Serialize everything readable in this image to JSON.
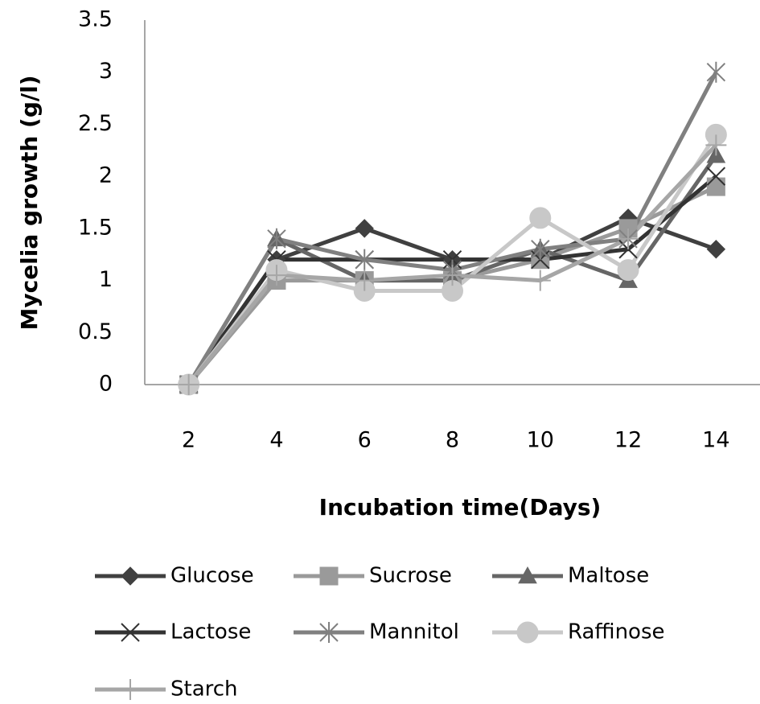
{
  "chart_data": {
    "type": "line",
    "x_label": "Incubation time(Days)",
    "y_label": "Mycelia growth (g/l)",
    "categories": [
      "2",
      "4",
      "6",
      "8",
      "10",
      "12",
      "14"
    ],
    "ylim": [
      0,
      3.5
    ],
    "yticks": [
      0,
      0.5,
      1,
      1.5,
      2,
      2.5,
      3,
      3.5
    ],
    "grid": false,
    "legend": "bottom",
    "series": [
      {
        "name": "Glucose",
        "color": "#404040",
        "marker": "diamond",
        "values": [
          0,
          1.2,
          1.5,
          1.2,
          1.2,
          1.6,
          1.3
        ]
      },
      {
        "name": "Sucrose",
        "color": "#9a9a9a",
        "marker": "square",
        "values": [
          0,
          1.0,
          1.0,
          1.0,
          1.2,
          1.5,
          1.9
        ]
      },
      {
        "name": "Maltose",
        "color": "#666666",
        "marker": "triangle",
        "values": [
          0,
          1.4,
          1.0,
          1.0,
          1.3,
          1.0,
          2.2
        ]
      },
      {
        "name": "Lactose",
        "color": "#333333",
        "marker": "x",
        "values": [
          0,
          1.2,
          1.2,
          1.2,
          1.2,
          1.3,
          2.0
        ]
      },
      {
        "name": "Mannitol",
        "color": "#808080",
        "marker": "star",
        "values": [
          0,
          1.4,
          1.2,
          1.1,
          1.3,
          1.4,
          3.0
        ]
      },
      {
        "name": "Raffinose",
        "color": "#c8c8c8",
        "marker": "circle",
        "values": [
          0,
          1.1,
          0.9,
          0.9,
          1.6,
          1.1,
          2.4
        ]
      },
      {
        "name": "Starch",
        "color": "#a6a6a6",
        "marker": "plus",
        "values": [
          0,
          1.05,
          1.0,
          1.05,
          1.0,
          1.4,
          2.3
        ]
      }
    ]
  }
}
